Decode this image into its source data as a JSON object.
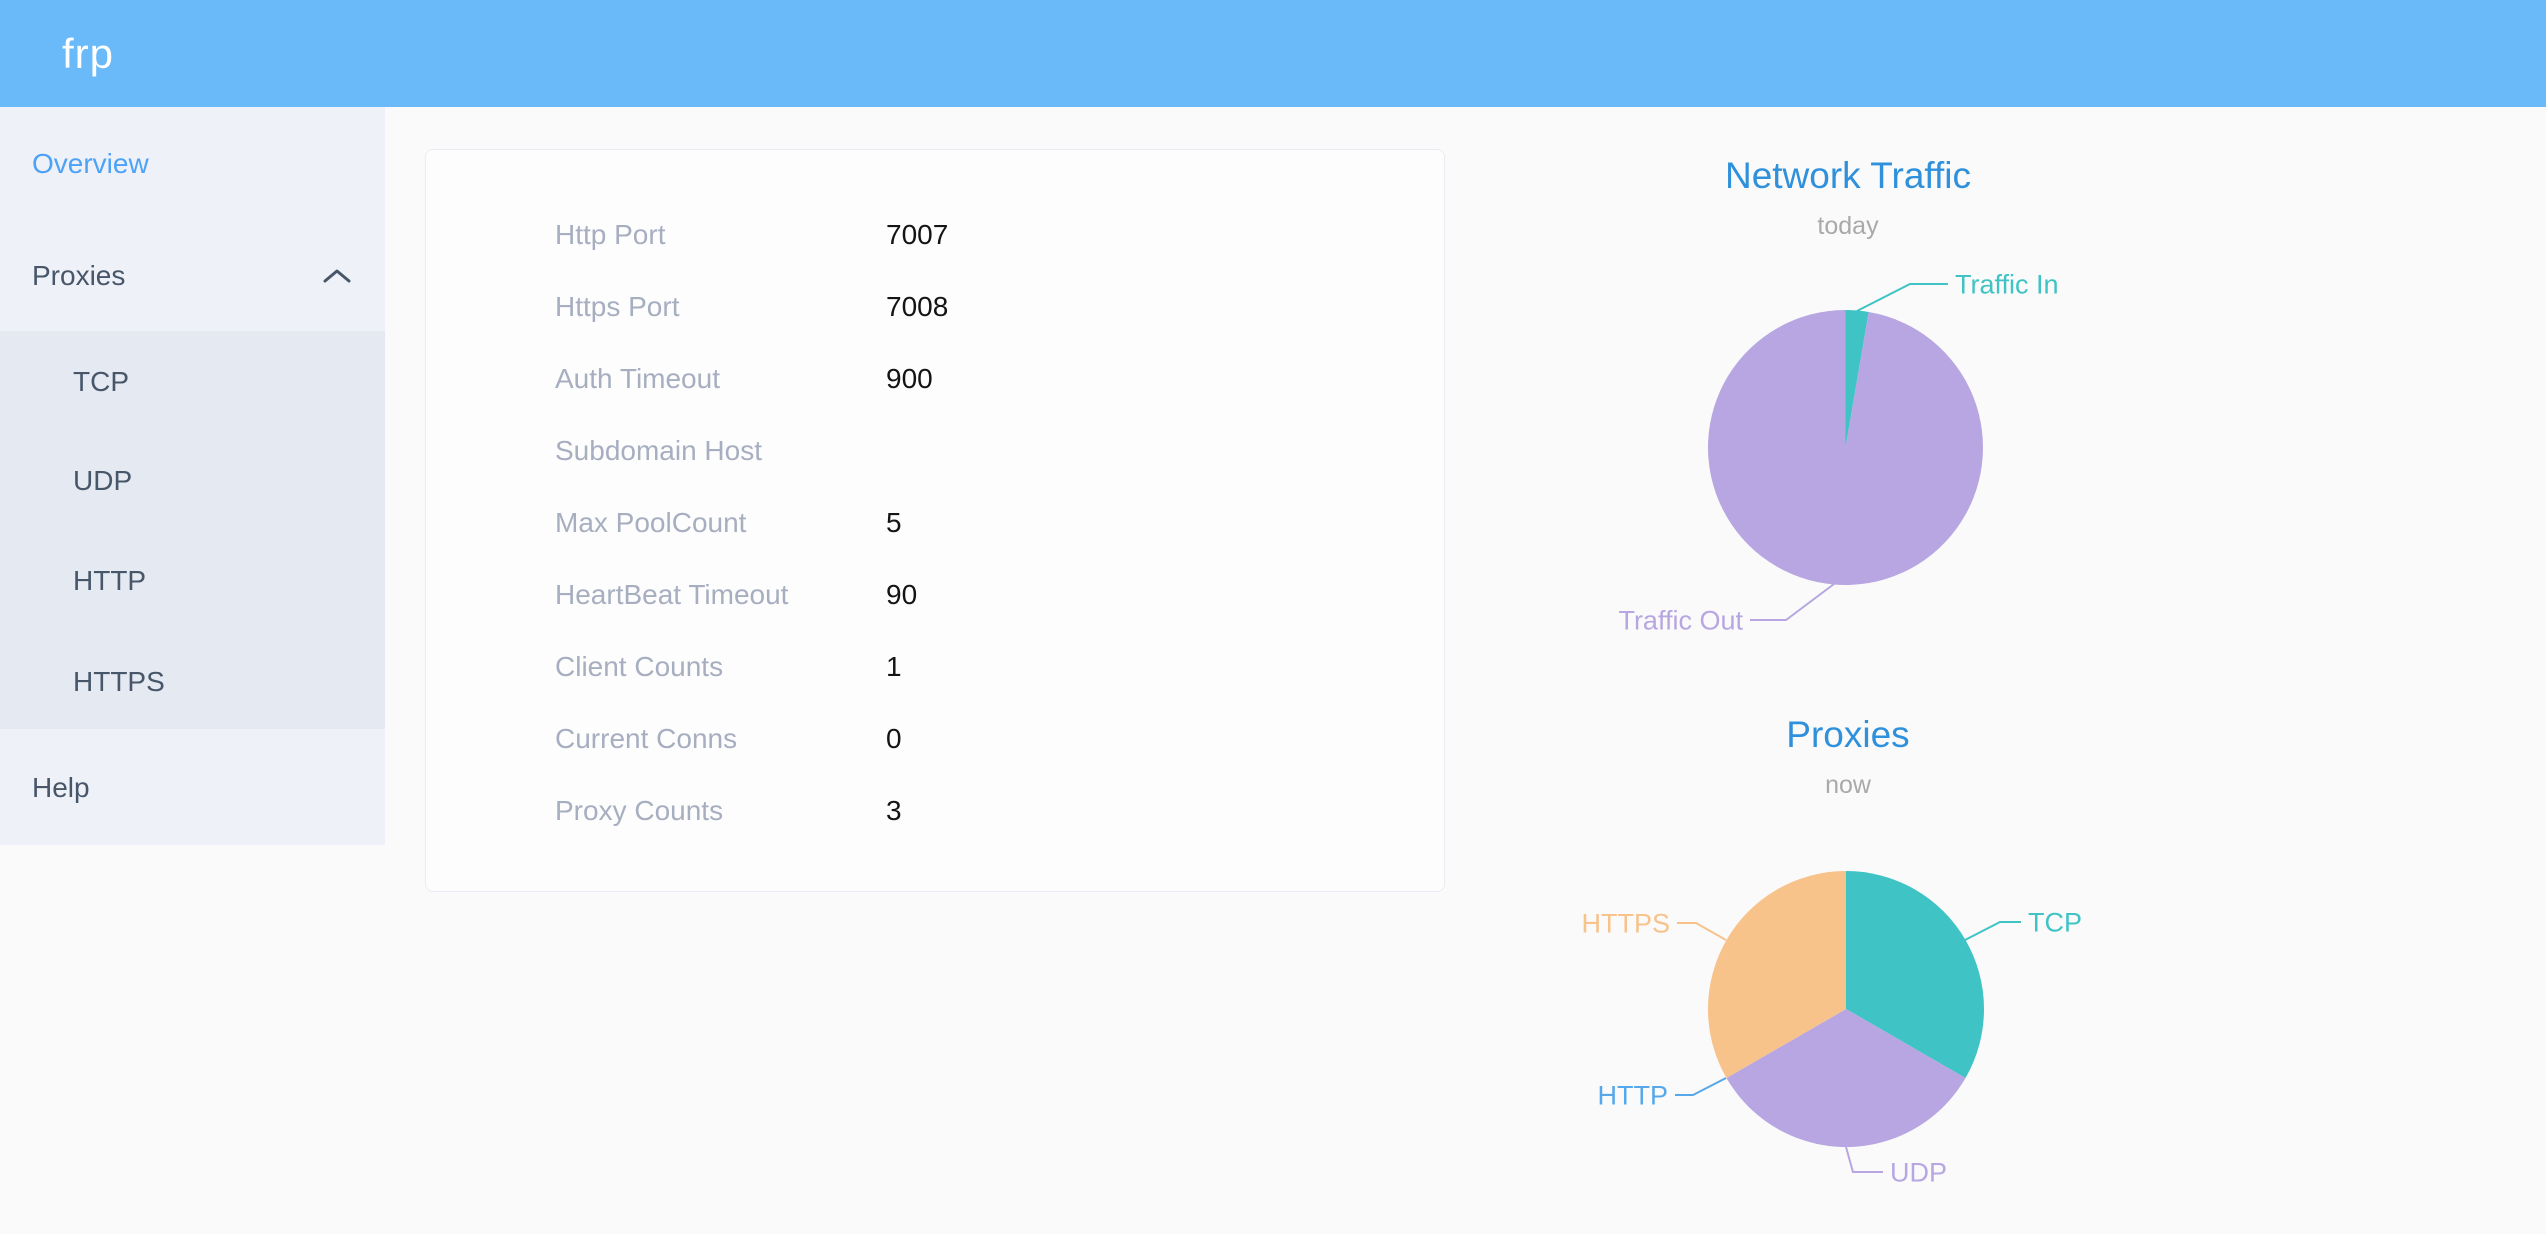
{
  "header": {
    "logo": "frp"
  },
  "sidebar": {
    "items": [
      {
        "label": "Overview",
        "active": true
      },
      {
        "label": "Proxies",
        "expanded": true
      },
      {
        "label": "TCP"
      },
      {
        "label": "UDP"
      },
      {
        "label": "HTTP"
      },
      {
        "label": "HTTPS"
      },
      {
        "label": "Help"
      }
    ]
  },
  "server_info": {
    "rows": [
      {
        "label": "Http Port",
        "value": "7007"
      },
      {
        "label": "Https Port",
        "value": "7008"
      },
      {
        "label": "Auth Timeout",
        "value": "900"
      },
      {
        "label": "Subdomain Host",
        "value": ""
      },
      {
        "label": "Max PoolCount",
        "value": "5"
      },
      {
        "label": "HeartBeat Timeout",
        "value": "90"
      },
      {
        "label": "Client Counts",
        "value": "1"
      },
      {
        "label": "Current Conns",
        "value": "0"
      },
      {
        "label": "Proxy Counts",
        "value": "3"
      }
    ]
  },
  "chart_data": [
    {
      "type": "pie",
      "title": "Network Traffic",
      "subtitle": "today",
      "labels": [
        "Traffic In",
        "Traffic Out"
      ],
      "values": [
        2.7,
        97.3
      ],
      "colors": [
        "#3fc3c5",
        "#b7a6e2"
      ],
      "legend_position": "callout-labels"
    },
    {
      "type": "pie",
      "title": "Proxies",
      "subtitle": "now",
      "labels": [
        "TCP",
        "UDP",
        "HTTP",
        "HTTPS"
      ],
      "values": [
        1,
        1,
        0,
        1
      ],
      "colors": [
        "#3fc3c5",
        "#b7a6e2",
        "#56a8ea",
        "#f8c28b"
      ],
      "legend_position": "callout-labels"
    }
  ],
  "colors": {
    "header_bg": "#6abafa",
    "sidebar_bg": "#eef1f7",
    "submenu_bg": "#e5e9f2",
    "menu_text": "#475669",
    "active_menu_text": "#4da2f7",
    "chart_title": "#2f90dc",
    "info_label": "#a6aec0",
    "page_bg": "#fafafa"
  }
}
